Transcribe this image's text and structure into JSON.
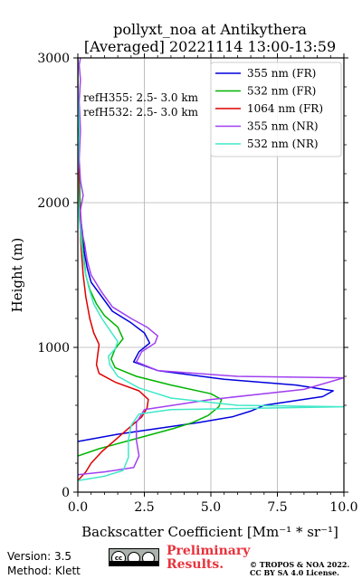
{
  "chart_data": {
    "type": "line",
    "title_line1": "pollyxt_noa at Antikythera",
    "title_line2": "[Averaged] 20221114 13:00-13:59",
    "xlabel": "Backscatter Coefficient [Mm⁻¹ * sr⁻¹]",
    "ylabel": "Height (m)",
    "xlim": [
      0,
      10
    ],
    "ylim": [
      0,
      3000
    ],
    "xticks": [
      "0.0",
      "2.5",
      "5.0",
      "7.5",
      "10.0"
    ],
    "yticks": [
      "0",
      "1000",
      "2000",
      "3000"
    ],
    "grid": true,
    "legend_position": "top-right",
    "annotations": [
      "refH355:  2.5- 3.0 km",
      "refH532:  2.5- 3.0 km"
    ],
    "series": [
      {
        "name": "355 nm (FR)",
        "color": "#0000dd",
        "points": [
          [
            0.0,
            350
          ],
          [
            1.5,
            400
          ],
          [
            3.0,
            440
          ],
          [
            4.5,
            480
          ],
          [
            5.8,
            520
          ],
          [
            6.5,
            560
          ],
          [
            7.0,
            600
          ],
          [
            9.2,
            660
          ],
          [
            9.6,
            700
          ],
          [
            8.2,
            740
          ],
          [
            5.5,
            780
          ],
          [
            3.0,
            840
          ],
          [
            2.1,
            900
          ],
          [
            2.3,
            970
          ],
          [
            2.7,
            1030
          ],
          [
            2.5,
            1100
          ],
          [
            2.0,
            1170
          ],
          [
            1.3,
            1250
          ],
          [
            0.9,
            1350
          ],
          [
            0.5,
            1450
          ],
          [
            0.35,
            1550
          ],
          [
            0.25,
            1650
          ],
          [
            0.2,
            1750
          ],
          [
            0.1,
            1900
          ],
          [
            0.05,
            2200
          ],
          [
            0.02,
            2500
          ],
          [
            0.0,
            2800
          ],
          [
            0.0,
            3000
          ]
        ]
      },
      {
        "name": "532 nm (FR)",
        "color": "#00b400",
        "points": [
          [
            0.0,
            250
          ],
          [
            0.8,
            300
          ],
          [
            1.8,
            350
          ],
          [
            2.8,
            400
          ],
          [
            3.6,
            440
          ],
          [
            4.3,
            480
          ],
          [
            4.9,
            530
          ],
          [
            5.3,
            590
          ],
          [
            5.4,
            640
          ],
          [
            5.0,
            680
          ],
          [
            3.5,
            740
          ],
          [
            2.2,
            800
          ],
          [
            1.4,
            860
          ],
          [
            1.25,
            920
          ],
          [
            1.4,
            990
          ],
          [
            1.7,
            1060
          ],
          [
            1.5,
            1140
          ],
          [
            1.0,
            1220
          ],
          [
            0.7,
            1300
          ],
          [
            0.45,
            1400
          ],
          [
            0.3,
            1500
          ],
          [
            0.2,
            1650
          ],
          [
            0.1,
            1900
          ],
          [
            0.05,
            2200
          ],
          [
            0.02,
            2500
          ],
          [
            0.0,
            2800
          ],
          [
            0.0,
            3000
          ]
        ]
      },
      {
        "name": "1064 nm (FR)",
        "color": "#dd0000",
        "points": [
          [
            0.0,
            80
          ],
          [
            0.3,
            140
          ],
          [
            0.5,
            200
          ],
          [
            0.9,
            280
          ],
          [
            1.4,
            360
          ],
          [
            1.9,
            440
          ],
          [
            2.4,
            520
          ],
          [
            2.6,
            580
          ],
          [
            2.65,
            640
          ],
          [
            2.3,
            700
          ],
          [
            1.4,
            760
          ],
          [
            0.8,
            820
          ],
          [
            0.7,
            880
          ],
          [
            0.75,
            950
          ],
          [
            0.8,
            1020
          ],
          [
            0.6,
            1100
          ],
          [
            0.45,
            1200
          ],
          [
            0.3,
            1350
          ],
          [
            0.2,
            1500
          ],
          [
            0.12,
            1700
          ],
          [
            0.05,
            2000
          ],
          [
            0.02,
            2300
          ],
          [
            0.0,
            2600
          ],
          [
            0.0,
            3000
          ]
        ]
      },
      {
        "name": "355 nm (NR)",
        "color": "#a040f0",
        "points": [
          [
            0.0,
            120
          ],
          [
            1.0,
            140
          ],
          [
            2.1,
            170
          ],
          [
            2.3,
            250
          ],
          [
            2.2,
            360
          ],
          [
            2.2,
            480
          ],
          [
            2.5,
            570
          ],
          [
            5.0,
            640
          ],
          [
            8.5,
            710
          ],
          [
            10.0,
            790
          ],
          [
            6.0,
            800
          ],
          [
            3.0,
            840
          ],
          [
            2.2,
            900
          ],
          [
            2.4,
            970
          ],
          [
            2.9,
            1030
          ],
          [
            3.0,
            1080
          ],
          [
            2.6,
            1140
          ],
          [
            2.0,
            1200
          ],
          [
            1.3,
            1280
          ],
          [
            0.9,
            1380
          ],
          [
            0.5,
            1500
          ],
          [
            0.35,
            1600
          ],
          [
            0.25,
            1720
          ],
          [
            0.15,
            1800
          ],
          [
            0.1,
            1950
          ],
          [
            0.2,
            2050
          ],
          [
            0.1,
            2150
          ],
          [
            0.05,
            2300
          ],
          [
            0.1,
            2500
          ],
          [
            0.05,
            2700
          ],
          [
            0.1,
            2850
          ],
          [
            0.05,
            2950
          ],
          [
            0.1,
            3000
          ]
        ]
      },
      {
        "name": "532 nm (NR)",
        "color": "#40e8c8",
        "points": [
          [
            0.0,
            80
          ],
          [
            1.0,
            110
          ],
          [
            1.7,
            150
          ],
          [
            1.9,
            240
          ],
          [
            1.9,
            360
          ],
          [
            2.0,
            460
          ],
          [
            2.3,
            540
          ],
          [
            3.5,
            570
          ],
          [
            10.0,
            590
          ],
          [
            6.0,
            600
          ],
          [
            3.5,
            650
          ],
          [
            2.3,
            720
          ],
          [
            1.5,
            800
          ],
          [
            1.2,
            880
          ],
          [
            1.15,
            940
          ],
          [
            1.4,
            990
          ],
          [
            1.5,
            1040
          ],
          [
            1.2,
            1120
          ],
          [
            0.9,
            1200
          ],
          [
            0.6,
            1300
          ],
          [
            0.4,
            1420
          ],
          [
            0.25,
            1550
          ],
          [
            0.15,
            1700
          ],
          [
            0.05,
            1900
          ],
          [
            0.0,
            2200
          ],
          [
            0.05,
            2500
          ],
          [
            0.0,
            2800
          ],
          [
            0.0,
            3000
          ]
        ]
      }
    ]
  },
  "footer": {
    "version": "Version: 3.5",
    "method": "Method: Klett",
    "prelim_line1": "Preliminary",
    "prelim_line2": "Results.",
    "copyright_line1": "© TROPOS & NOA 2022.",
    "copyright_line2": "CC BY SA 4.0 License.",
    "license_badge": "cc by sa"
  }
}
